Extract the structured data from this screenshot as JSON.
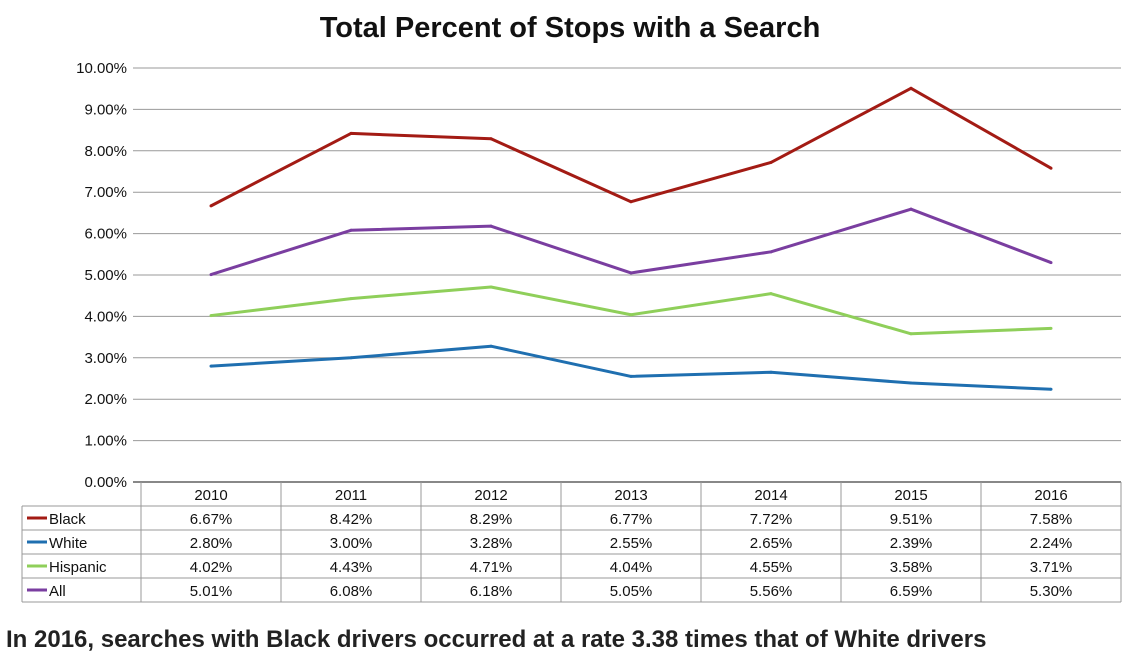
{
  "chart_data": {
    "type": "line",
    "title": "Total Percent of Stops with a Search",
    "categories": [
      "2010",
      "2011",
      "2012",
      "2013",
      "2014",
      "2015",
      "2016"
    ],
    "ylim": [
      0,
      10
    ],
    "yticks": [
      "0.00%",
      "1.00%",
      "2.00%",
      "3.00%",
      "4.00%",
      "5.00%",
      "6.00%",
      "7.00%",
      "8.00%",
      "9.00%",
      "10.00%"
    ],
    "grid": true,
    "legend": "data-table-bottom",
    "series": [
      {
        "name": "Black",
        "color": "#a31b14",
        "values": [
          6.67,
          8.42,
          8.29,
          6.77,
          7.72,
          9.51,
          7.58
        ],
        "labels": [
          "6.67%",
          "8.42%",
          "8.29%",
          "6.77%",
          "7.72%",
          "9.51%",
          "7.58%"
        ]
      },
      {
        "name": "White",
        "color": "#1f6fb0",
        "values": [
          2.8,
          3.0,
          3.28,
          2.55,
          2.65,
          2.39,
          2.24
        ],
        "labels": [
          "2.80%",
          "3.00%",
          "3.28%",
          "2.55%",
          "2.65%",
          "2.39%",
          "2.24%"
        ]
      },
      {
        "name": "Hispanic",
        "color": "#8fcf5a",
        "values": [
          4.02,
          4.43,
          4.71,
          4.04,
          4.55,
          3.58,
          3.71
        ],
        "labels": [
          "4.02%",
          "4.43%",
          "4.71%",
          "4.04%",
          "4.55%",
          "3.58%",
          "3.71%"
        ]
      },
      {
        "name": "All",
        "color": "#7a3ea0",
        "values": [
          5.01,
          6.08,
          6.18,
          5.05,
          5.56,
          6.59,
          5.3
        ],
        "labels": [
          "5.01%",
          "6.08%",
          "6.18%",
          "5.05%",
          "5.56%",
          "6.59%",
          "5.30%"
        ]
      }
    ]
  },
  "footnote": "In 2016, searches with Black drivers occurred at a rate 3.38 times that of White drivers"
}
